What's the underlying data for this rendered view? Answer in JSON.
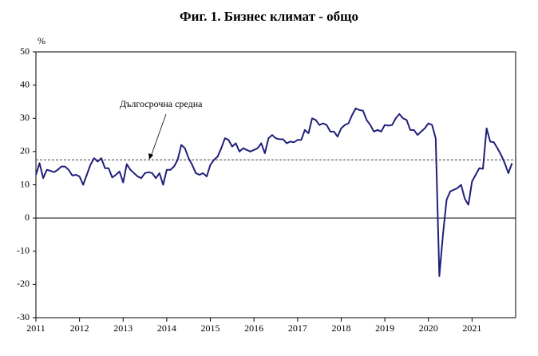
{
  "chart_data": {
    "type": "line",
    "title": "Фиг. 1. Бизнес климат - общо",
    "y_label": "%",
    "categories": [
      "2011",
      null,
      null,
      null,
      null,
      null,
      null,
      null,
      null,
      null,
      null,
      null,
      "2012",
      null,
      null,
      null,
      null,
      null,
      null,
      null,
      null,
      null,
      null,
      null,
      "2013",
      null,
      null,
      null,
      null,
      null,
      null,
      null,
      null,
      null,
      null,
      null,
      "2014",
      null,
      null,
      null,
      null,
      null,
      null,
      null,
      null,
      null,
      null,
      null,
      "2015",
      null,
      null,
      null,
      null,
      null,
      null,
      null,
      null,
      null,
      null,
      null,
      "2016",
      null,
      null,
      null,
      null,
      null,
      null,
      null,
      null,
      null,
      null,
      null,
      "2017",
      null,
      null,
      null,
      null,
      null,
      null,
      null,
      null,
      null,
      null,
      null,
      "2018",
      null,
      null,
      null,
      null,
      null,
      null,
      null,
      null,
      null,
      null,
      null,
      "2019",
      null,
      null,
      null,
      null,
      null,
      null,
      null,
      null,
      null,
      null,
      null,
      "2020",
      null,
      null,
      null,
      null,
      null,
      null,
      null,
      null,
      null,
      null,
      null,
      "2021",
      null,
      null,
      null,
      null,
      null,
      null,
      null,
      null,
      null,
      null,
      null
    ],
    "series": [
      {
        "name": "Бизнес климат - общо",
        "color": "#1f1f7a",
        "values": [
          13,
          16.5,
          12,
          14.5,
          14.2,
          13.8,
          14.5,
          15.5,
          15.5,
          14.5,
          12.8,
          13,
          12.5,
          10,
          13,
          16,
          18,
          17,
          18,
          15,
          15,
          12.2,
          13,
          14,
          10.7,
          16.2,
          14.5,
          13.5,
          12.5,
          12,
          13.5,
          13.8,
          13.5,
          12,
          13.5,
          10,
          14.5,
          14.5,
          15.5,
          17.5,
          22,
          21,
          18,
          16,
          13.5,
          13,
          13.5,
          12.5,
          16,
          17.5,
          18.5,
          21,
          24,
          23.5,
          21.5,
          22.5,
          20,
          21,
          20.5,
          20,
          20.5,
          21,
          22.5,
          19.5,
          24,
          25,
          24,
          23.7,
          23.7,
          22.5,
          23,
          22.8,
          23.5,
          23.5,
          26.5,
          25.5,
          30,
          29.5,
          28,
          28.5,
          28,
          26,
          26,
          24.5,
          27,
          28,
          28.5,
          31,
          33,
          32.5,
          32.3,
          29.5,
          28,
          26,
          26.5,
          26,
          28,
          27.8,
          28,
          30,
          31.3,
          30,
          29.5,
          26.5,
          26.5,
          25,
          26,
          27,
          28.5,
          28,
          24,
          -17.5,
          -5,
          5.5,
          8,
          8.5,
          9,
          10,
          5.8,
          4,
          11,
          13,
          15,
          14.8,
          27,
          23,
          22.8,
          21,
          19,
          16.5,
          13.5,
          16.5
        ]
      }
    ],
    "reference_line": {
      "value": 17.5,
      "label": "Дългосрочна средна",
      "color": "#404040"
    },
    "ylim": [
      -30,
      50
    ],
    "yticks": [
      -30,
      -20,
      -10,
      0,
      10,
      20,
      30,
      40,
      50
    ],
    "grid": false
  }
}
